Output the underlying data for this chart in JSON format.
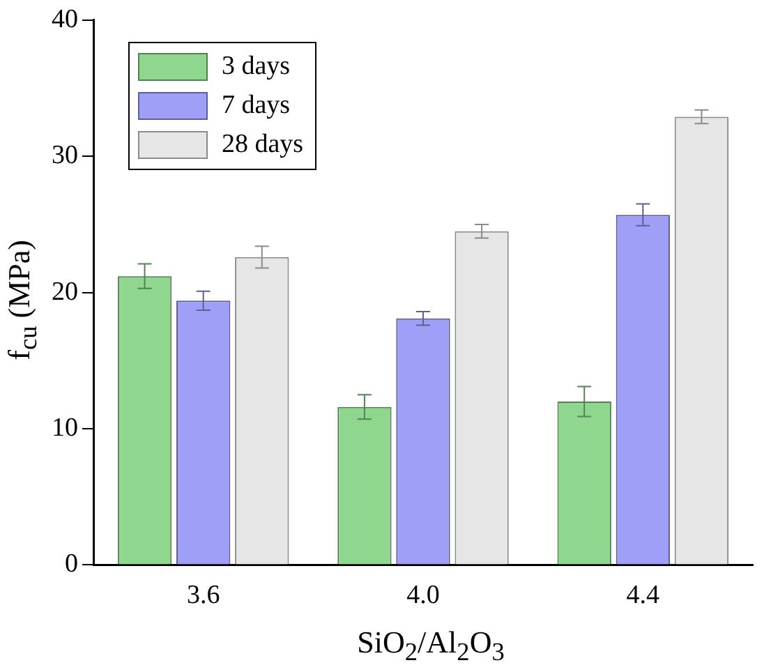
{
  "chart_data": {
    "type": "bar",
    "xlabel": "SiO$_{2}$/Al$_{2}$O$_{3}$",
    "ylabel": "f$_{cu}$ (MPa)",
    "categories": [
      "3.6",
      "4.0",
      "4.4"
    ],
    "series": [
      {
        "name": "3 days",
        "color": "#8fd68f",
        "values": [
          21.2,
          11.6,
          12.0
        ],
        "errors": [
          0.9,
          0.9,
          1.1
        ]
      },
      {
        "name": "7 days",
        "color": "#9f9ff8",
        "values": [
          19.4,
          18.1,
          25.7
        ],
        "errors": [
          0.7,
          0.5,
          0.8
        ]
      },
      {
        "name": "28 days",
        "color": "#e6e6e6",
        "values": [
          22.6,
          24.5,
          32.9
        ],
        "errors": [
          0.8,
          0.5,
          0.5
        ]
      }
    ],
    "ylim": [
      0,
      40
    ],
    "yticks": [
      0,
      10,
      20,
      30,
      40
    ],
    "grid": false,
    "legend": "top left"
  }
}
